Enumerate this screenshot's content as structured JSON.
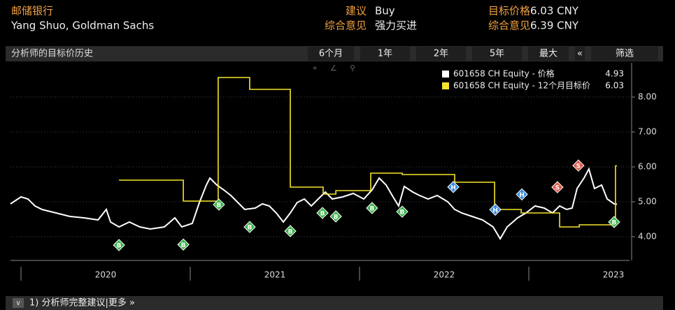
{
  "header": {
    "ticker_name": "邮储银行",
    "analyst": "Yang Shuo, Goldman Sachs",
    "rec_label": "建议",
    "rec_value": "Buy",
    "target_label": "目标价格",
    "target_value": "6.03 CNY",
    "consensus_label": "综合意见",
    "consensus_value": "强力买进",
    "consensus_target_label": "综合意见",
    "consensus_target_value": "6.39 CNY"
  },
  "toolbar": {
    "title": "分析师的目标价历史",
    "buttons": [
      "6个月",
      "1年",
      "2年",
      "5年",
      "最大",
      "«",
      "筛选"
    ]
  },
  "footer": {
    "text": "1) 分析师完整建议|更多 »"
  },
  "chart_data": {
    "type": "line",
    "xlim": [
      2019.938,
      2023.595
    ],
    "ylim": [
      3.38,
      8.98
    ],
    "xticks": [
      {
        "value": 2020,
        "label": "2020"
      },
      {
        "value": 2021,
        "label": "2021"
      },
      {
        "value": 2022,
        "label": "2022"
      },
      {
        "value": 2023,
        "label": "2023"
      }
    ],
    "yticks": [
      {
        "value": 4,
        "label": "4.00"
      },
      {
        "value": 5,
        "label": "5.00"
      },
      {
        "value": 6,
        "label": "6.00"
      },
      {
        "value": 7,
        "label": "7.00"
      },
      {
        "value": 8,
        "label": "8.00"
      }
    ],
    "grid": true,
    "series": [
      {
        "name": "601658 CH Equity - 价格",
        "color": "#ffffff",
        "last_value": 4.93,
        "x": [
          2019.938,
          2020.0,
          2020.041,
          2020.083,
          2020.124,
          2020.207,
          2020.289,
          2020.372,
          2020.455,
          2020.504,
          2020.529,
          2020.579,
          2020.64,
          2020.702,
          2020.764,
          2020.847,
          2020.909,
          2020.95,
          2021.012,
          2021.054,
          2021.095,
          2021.116,
          2021.157,
          2021.198,
          2021.24,
          2021.281,
          2021.322,
          2021.384,
          2021.426,
          2021.467,
          2021.508,
          2021.55,
          2021.591,
          2021.632,
          2021.674,
          2021.715,
          2021.756,
          2021.798,
          2021.839,
          2021.901,
          2021.963,
          2022.025,
          2022.074,
          2022.116,
          2022.157,
          2022.198,
          2022.231,
          2022.264,
          2022.314,
          2022.355,
          2022.405,
          2022.459,
          2022.521,
          2022.562,
          2022.603,
          2022.665,
          2022.727,
          2022.789,
          2022.831,
          2022.872,
          2022.934,
          2022.983,
          2023.037,
          2023.091,
          2023.14,
          2023.182,
          2023.223,
          2023.256,
          2023.285,
          2023.326,
          2023.355,
          2023.388,
          2023.43,
          2023.463,
          2023.504,
          2023.521
        ],
        "values": [
          4.94,
          5.14,
          5.08,
          4.88,
          4.78,
          4.68,
          4.58,
          4.54,
          4.48,
          4.78,
          4.42,
          4.28,
          4.42,
          4.28,
          4.22,
          4.28,
          4.54,
          4.28,
          4.38,
          4.98,
          5.48,
          5.68,
          5.48,
          5.34,
          5.18,
          4.98,
          4.78,
          4.82,
          4.94,
          4.88,
          4.68,
          4.42,
          4.68,
          4.98,
          5.08,
          4.88,
          5.08,
          5.28,
          5.08,
          5.14,
          5.24,
          5.08,
          5.34,
          5.68,
          5.48,
          5.14,
          4.88,
          5.44,
          5.28,
          5.18,
          5.08,
          5.18,
          5.0,
          4.78,
          4.68,
          4.58,
          4.48,
          4.28,
          3.94,
          4.28,
          4.54,
          4.68,
          4.88,
          4.82,
          4.68,
          4.88,
          4.78,
          4.82,
          5.38,
          5.68,
          5.94,
          5.38,
          5.48,
          5.08,
          4.94,
          4.93
        ]
      },
      {
        "name": "601658 CH Equity - 12个月目标价",
        "color": "#f5e52a",
        "last_value": 6.03,
        "step": true,
        "x": [
          2020.579,
          2020.959,
          2021.165,
          2021.351,
          2021.591,
          2021.785,
          2021.86,
          2022.066,
          2022.252,
          2022.562,
          2022.798,
          2022.955,
          2023.182,
          2023.298,
          2023.512,
          2023.521
        ],
        "values": [
          5.62,
          5.02,
          8.56,
          8.22,
          5.42,
          5.22,
          5.32,
          5.82,
          5.78,
          5.56,
          4.78,
          4.68,
          4.28,
          4.34,
          6.03,
          6.03
        ]
      }
    ],
    "ratings": [
      {
        "x": 2020.579,
        "label": "B"
      },
      {
        "x": 2020.959,
        "label": "B"
      },
      {
        "x": 2021.169,
        "label": "B"
      },
      {
        "x": 2021.351,
        "label": "B"
      },
      {
        "x": 2021.591,
        "label": "B"
      },
      {
        "x": 2021.781,
        "label": "B"
      },
      {
        "x": 2021.86,
        "label": "B"
      },
      {
        "x": 2022.074,
        "label": "B"
      },
      {
        "x": 2022.252,
        "label": "B"
      },
      {
        "x": 2022.554,
        "label": "H"
      },
      {
        "x": 2022.802,
        "label": "H"
      },
      {
        "x": 2022.959,
        "label": "H"
      },
      {
        "x": 2023.169,
        "label": "S"
      },
      {
        "x": 2023.293,
        "label": "S"
      },
      {
        "x": 2023.504,
        "label": "B"
      }
    ]
  }
}
